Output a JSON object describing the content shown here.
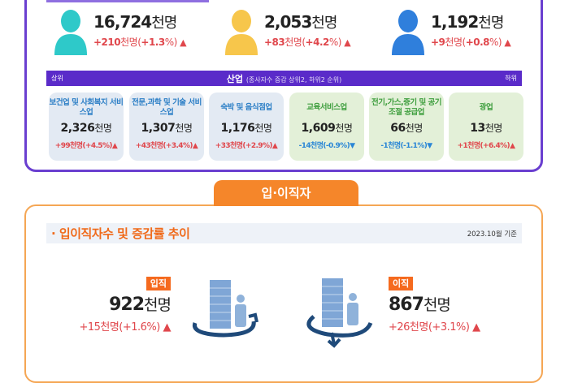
{
  "summary": [
    {
      "value": "16,724",
      "unit": "천명",
      "change": "+210",
      "change_unit": "천명",
      "pct": "+1.3",
      "color": "#2ec9c9"
    },
    {
      "value": "2,053",
      "unit": "천명",
      "change": "+83",
      "change_unit": "천명",
      "pct": "+4.2",
      "color": "#f7c64b"
    },
    {
      "value": "1,192",
      "unit": "천명",
      "change": "+9",
      "change_unit": "천명",
      "pct": "+0.8",
      "color": "#2f7fdc"
    }
  ],
  "industry": {
    "left_label": "상위",
    "title": "산업",
    "subtitle": "(종사자수 증감 상위2, 하위2 순위)",
    "right_label": "하위",
    "cards": [
      {
        "name": "보건업 및 사회복지 서비스업",
        "value": "2,326",
        "unit": "천명",
        "change": "+99천명(+4.5%)",
        "dir": "up"
      },
      {
        "name": "전문,과학 및 기술 서비스업",
        "value": "1,307",
        "unit": "천명",
        "change": "+43천명(+3.4%)",
        "dir": "up"
      },
      {
        "name": "숙박 및 음식점업",
        "value": "1,176",
        "unit": "천명",
        "change": "+33천명(+2.9%)",
        "dir": "up"
      },
      {
        "name": "교육서비스업",
        "value": "1,609",
        "unit": "천명",
        "change": "-14천명(-0.9%)",
        "dir": "down"
      },
      {
        "name": "전기,가스,증기 및 공기조절 공급업",
        "value": "66",
        "unit": "천명",
        "change": "-1천명(-1.1%)",
        "dir": "down"
      },
      {
        "name": "광업",
        "value": "13",
        "unit": "천명",
        "change": "+1천명(+6.4%)",
        "dir": "up"
      }
    ]
  },
  "turnover": {
    "tab": "입·이직자",
    "title": "· 입이직자수 및 증감률 추이",
    "date": "2023.10월 기준",
    "hire": {
      "label": "입직",
      "value": "922",
      "unit": "천명",
      "change": "+15천명(+1.6%)"
    },
    "sep": {
      "label": "이직",
      "value": "867",
      "unit": "천명",
      "change": "+26천명(+3.1%)"
    }
  },
  "icons": {
    "up": "▲",
    "down": "▼"
  }
}
